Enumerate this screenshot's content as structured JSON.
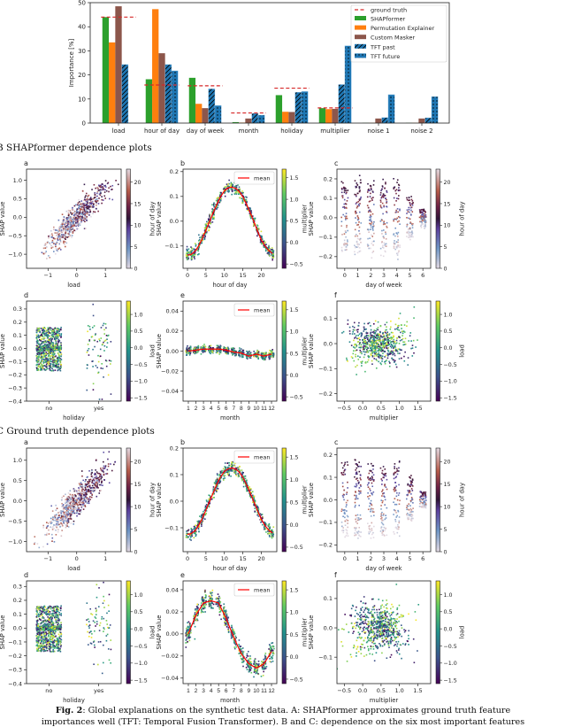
{
  "sections": {
    "B": "B SHAPformer dependence plots",
    "C": "C Ground truth dependence plots"
  },
  "caption": {
    "label": "Fig. 2",
    "line1": ": Global explanations on the synthetic test data. A: SHAPformer approximates ground truth feature",
    "line2": "importances well (TFT: Temporal Fusion Transformer). B and C: dependence on the six most important features"
  },
  "chart_data": [
    {
      "id": "A",
      "type": "bar",
      "ylabel": "Importance [%]",
      "xlabel": "",
      "ylim": [
        0,
        50
      ],
      "yticks": [
        0,
        10,
        20,
        30,
        40,
        50
      ],
      "grid": false,
      "legend": "top-right",
      "categories": [
        "load",
        "hour of day",
        "day of week",
        "month",
        "holiday",
        "multiplier",
        "noise 1",
        "noise 2"
      ],
      "reference": {
        "name": "ground truth",
        "color": "#d62728",
        "style": "dashed",
        "values": [
          44,
          15.8,
          15.5,
          4.2,
          14.5,
          6.3,
          null,
          null
        ]
      },
      "series": [
        {
          "name": "SHAPformer",
          "color": "#2ca02c",
          "hatch": "none",
          "values": [
            44,
            18.2,
            18.8,
            0.4,
            11.6,
            6.2,
            0.1,
            0.1
          ]
        },
        {
          "name": "Permutation Explainer",
          "color": "#ff7f0e",
          "hatch": "none",
          "values": [
            33.5,
            47.3,
            8.0,
            0.2,
            4.7,
            5.8,
            0.1,
            0.1
          ]
        },
        {
          "name": "Custom Masker",
          "color": "#8c564b",
          "hatch": "none",
          "values": [
            48.5,
            29.0,
            6.2,
            1.9,
            4.6,
            5.9,
            1.9,
            1.9
          ]
        },
        {
          "name": "TFT past",
          "color": "#1f77b4",
          "hatch": "diagonal",
          "values": [
            24.3,
            24.3,
            14.2,
            4.0,
            12.8,
            16.0,
            2.3,
            2.2
          ]
        },
        {
          "name": "TFT future",
          "color": "#1f77b4",
          "hatch": "dots",
          "values": [
            0,
            21.7,
            7.3,
            3.3,
            13.1,
            32.1,
            11.8,
            11.0
          ]
        }
      ]
    },
    {
      "id": "B-a",
      "letter": "a",
      "type": "scatter",
      "pattern": "linear",
      "xlabel": "load",
      "ylabel": "SHAP value",
      "xlim": [
        -1.75,
        1.55
      ],
      "ylim": [
        -1.38,
        1.3
      ],
      "xticks": [
        -1,
        0,
        1
      ],
      "xticklabels": [
        "−1",
        "0",
        "1"
      ],
      "yticks": [
        -1,
        -0.5,
        0,
        0.5,
        1
      ],
      "yticklabels": [
        "−1.0",
        "−0.5",
        "0.0",
        "0.5",
        "1.0"
      ],
      "colorbar": {
        "label": "hour of day",
        "colormap": "twilight",
        "range": [
          0,
          23
        ],
        "ticks": [
          0,
          5,
          10,
          15,
          20
        ]
      }
    },
    {
      "id": "B-b",
      "letter": "b",
      "type": "scatter",
      "pattern": "curve",
      "xlabel": "hour of day",
      "ylabel": "SHAP value",
      "xlim": [
        -1.2,
        24.2
      ],
      "ylim": [
        -0.19,
        0.21
      ],
      "xticks": [
        0,
        5,
        10,
        15,
        20
      ],
      "xticklabels": [
        "0",
        "5",
        "10",
        "15",
        "20"
      ],
      "yticks": [
        -0.1,
        0,
        0.1,
        0.2
      ],
      "yticklabels": [
        "−0.1",
        "0.0",
        "0.1",
        "0.2"
      ],
      "colorbar": {
        "label": "multiplier",
        "colormap": "viridis",
        "range": [
          -0.6,
          1.7
        ],
        "ticks": [
          -0.5,
          0,
          0.5,
          1,
          1.5
        ],
        "ticklabels": [
          "−0.5",
          "0.0",
          "0.5",
          "1.0",
          "1.5"
        ]
      },
      "mean": {
        "name": "mean",
        "x": [
          0,
          1,
          2,
          3,
          4,
          5,
          6,
          7,
          8,
          9,
          10,
          11,
          12,
          13,
          14,
          15,
          16,
          17,
          18,
          19,
          20,
          21,
          22,
          23
        ],
        "y": [
          -0.137,
          -0.134,
          -0.122,
          -0.1,
          -0.07,
          -0.036,
          0,
          0.036,
          0.07,
          0.1,
          0.122,
          0.135,
          0.137,
          0.133,
          0.12,
          0.098,
          0.068,
          0.034,
          -0.002,
          -0.04,
          -0.075,
          -0.1,
          -0.118,
          -0.13
        ]
      }
    },
    {
      "id": "B-c",
      "letter": "c",
      "type": "scatter",
      "pattern": "dow",
      "amp": [
        0.2,
        0.2,
        0.2,
        0.2,
        0.2,
        0.12,
        0.05
      ],
      "xlabel": "day of week",
      "ylabel": "SHAP value",
      "xlim": [
        -0.6,
        6.6
      ],
      "ylim": [
        -0.26,
        0.25
      ],
      "xticks": [
        0,
        1,
        2,
        3,
        4,
        5,
        6
      ],
      "xticklabels": [
        "0",
        "1",
        "2",
        "3",
        "4",
        "5",
        "6"
      ],
      "yticks": [
        -0.2,
        -0.1,
        0,
        0.1,
        0.2
      ],
      "yticklabels": [
        "−0.2",
        "−0.1",
        "0.0",
        "0.1",
        "0.2"
      ],
      "colorbar": {
        "label": "hour of day",
        "colormap": "twilight",
        "range": [
          0,
          23
        ],
        "ticks": [
          0,
          5,
          10,
          15,
          20
        ]
      }
    },
    {
      "id": "B-d",
      "letter": "d",
      "type": "scatter",
      "pattern": "holiday",
      "xlabel": "holiday",
      "ylabel": "SHAP value",
      "xlim": [
        -0.45,
        1.45
      ],
      "ylim": [
        -0.4,
        0.36
      ],
      "xticks": [
        0,
        1
      ],
      "xticklabels": [
        "no",
        "yes"
      ],
      "yticks": [
        -0.4,
        -0.3,
        -0.2,
        -0.1,
        0,
        0.1,
        0.2,
        0.3
      ],
      "yticklabels": [
        "−0.4",
        "−0.3",
        "−0.2",
        "−0.1",
        "0.0",
        "0.1",
        "0.2",
        "0.3"
      ],
      "colorbar": {
        "label": "load",
        "colormap": "viridis",
        "range": [
          -1.6,
          1.4
        ],
        "ticks": [
          -1.5,
          -1,
          -0.5,
          0,
          0.5,
          1
        ],
        "ticklabels": [
          "−1.5",
          "−1.0",
          "−0.5",
          "0.0",
          "0.5",
          "1.0"
        ]
      }
    },
    {
      "id": "B-e",
      "letter": "e",
      "type": "scatter",
      "pattern": "curve",
      "noise": 0.0018,
      "xlabel": "month",
      "ylabel": "SHAP value",
      "xlim": [
        0.3,
        12.7
      ],
      "ylim": [
        -0.05,
        0.05
      ],
      "xticks": [
        1,
        2,
        3,
        4,
        5,
        6,
        7,
        8,
        9,
        10,
        11,
        12
      ],
      "xticklabels": [
        "1",
        "2",
        "3",
        "4",
        "5",
        "6",
        "7",
        "8",
        "9",
        "10",
        "11",
        "12"
      ],
      "yticks": [
        -0.04,
        -0.02,
        0,
        0.02,
        0.04
      ],
      "yticklabels": [
        "−0.04",
        "−0.02",
        "0.00",
        "0.02",
        "0.04"
      ],
      "colorbar": {
        "label": "multiplier",
        "colormap": "viridis",
        "range": [
          -0.6,
          1.7
        ],
        "ticks": [
          -0.5,
          0,
          0.5,
          1,
          1.5
        ],
        "ticklabels": [
          "−0.5",
          "0.0",
          "0.5",
          "1.0",
          "1.5"
        ]
      },
      "mean": {
        "name": "mean",
        "x": [
          1,
          2,
          3,
          4,
          5,
          6,
          7,
          8,
          9,
          10,
          11,
          12
        ],
        "y": [
          0,
          0.001,
          0.002,
          0.002,
          0.002,
          0.001,
          -0.001,
          -0.002,
          -0.005,
          -0.003,
          -0.005,
          -0.003
        ]
      }
    },
    {
      "id": "B-f",
      "letter": "f",
      "type": "scatter",
      "pattern": "cloud",
      "xlabel": "multiplier",
      "ylabel": "SHAP value",
      "xlim": [
        -0.7,
        1.85
      ],
      "ylim": [
        -0.23,
        0.17
      ],
      "xticks": [
        -0.5,
        0,
        0.5,
        1,
        1.5
      ],
      "xticklabels": [
        "−0.5",
        "0.0",
        "0.5",
        "1.0",
        "1.5"
      ],
      "yticks": [
        -0.2,
        -0.1,
        0,
        0.1
      ],
      "yticklabels": [
        "−0.2",
        "−0.1",
        "0.0",
        "0.1"
      ],
      "colorbar": {
        "label": "load",
        "colormap": "viridis",
        "range": [
          -1.6,
          1.4
        ],
        "ticks": [
          -1.5,
          -1,
          -0.5,
          0,
          0.5,
          1
        ],
        "ticklabels": [
          "−1.5",
          "−1.0",
          "−0.5",
          "0.0",
          "0.5",
          "1.0"
        ]
      }
    },
    {
      "id": "C-a",
      "letter": "a",
      "type": "scatter",
      "pattern": "linear",
      "xlabel": "load",
      "ylabel": "SHAP value",
      "xlim": [
        -1.75,
        1.55
      ],
      "ylim": [
        -1.25,
        1.3
      ],
      "xticks": [
        -1,
        0,
        1
      ],
      "xticklabels": [
        "−1",
        "0",
        "1"
      ],
      "yticks": [
        -1,
        -0.5,
        0,
        0.5,
        1
      ],
      "yticklabels": [
        "−1.0",
        "−0.5",
        "0.0",
        "0.5",
        "1.0"
      ],
      "colorbar": {
        "label": "hour of day",
        "colormap": "twilight",
        "range": [
          0,
          23
        ],
        "ticks": [
          0,
          5,
          10,
          15,
          20
        ]
      }
    },
    {
      "id": "C-b",
      "letter": "b",
      "type": "scatter",
      "pattern": "curve",
      "xlabel": "hour of day",
      "ylabel": "SHAP value",
      "xlim": [
        -1.2,
        24.2
      ],
      "ylim": [
        -0.19,
        0.2
      ],
      "xticks": [
        0,
        5,
        10,
        15,
        20
      ],
      "xticklabels": [
        "0",
        "5",
        "10",
        "15",
        "20"
      ],
      "yticks": [
        -0.1,
        0,
        0.1,
        0.2
      ],
      "yticklabels": [
        "−0.1",
        "0.0",
        "0.1",
        "0.2"
      ],
      "colorbar": {
        "label": "multiplier",
        "colormap": "viridis",
        "range": [
          -0.6,
          1.7
        ],
        "ticks": [
          -0.5,
          0,
          0.5,
          1,
          1.5
        ],
        "ticklabels": [
          "−0.5",
          "0.0",
          "0.5",
          "1.0",
          "1.5"
        ]
      },
      "mean": {
        "name": "mean",
        "x": [
          0,
          1,
          2,
          3,
          4,
          5,
          6,
          7,
          8,
          9,
          10,
          11,
          12,
          13,
          14,
          15,
          16,
          17,
          18,
          19,
          20,
          21,
          22,
          23
        ],
        "y": [
          -0.125,
          -0.122,
          -0.112,
          -0.092,
          -0.065,
          -0.033,
          0,
          0.033,
          0.065,
          0.092,
          0.112,
          0.122,
          0.125,
          0.122,
          0.11,
          0.09,
          0.062,
          0.031,
          -0.002,
          -0.036,
          -0.068,
          -0.092,
          -0.108,
          -0.12
        ]
      }
    },
    {
      "id": "C-c",
      "letter": "c",
      "type": "scatter",
      "pattern": "dow",
      "amp": [
        0.18,
        0.18,
        0.18,
        0.18,
        0.18,
        0.1,
        0.04
      ],
      "xlabel": "day of week",
      "ylabel": "SHAP value",
      "xlim": [
        -0.6,
        6.6
      ],
      "ylim": [
        -0.23,
        0.23
      ],
      "xticks": [
        0,
        1,
        2,
        3,
        4,
        5,
        6
      ],
      "xticklabels": [
        "0",
        "1",
        "2",
        "3",
        "4",
        "5",
        "6"
      ],
      "yticks": [
        -0.2,
        -0.1,
        0,
        0.1,
        0.2
      ],
      "yticklabels": [
        "−0.2",
        "−0.1",
        "0.0",
        "0.1",
        "0.2"
      ],
      "colorbar": {
        "label": "hour of day",
        "colormap": "twilight",
        "range": [
          0,
          23
        ],
        "ticks": [
          0,
          5,
          10,
          15,
          20
        ]
      }
    },
    {
      "id": "C-d",
      "letter": "d",
      "type": "scatter",
      "pattern": "holiday",
      "xlabel": "holiday",
      "ylabel": "SHAP value",
      "xlim": [
        -0.45,
        1.45
      ],
      "ylim": [
        -0.4,
        0.34
      ],
      "xticks": [
        0,
        1
      ],
      "xticklabels": [
        "no",
        "yes"
      ],
      "yticks": [
        -0.4,
        -0.3,
        -0.2,
        -0.1,
        0,
        0.1,
        0.2,
        0.3
      ],
      "yticklabels": [
        "−0.4",
        "−0.3",
        "−0.2",
        "−0.1",
        "0.0",
        "0.1",
        "0.2",
        "0.3"
      ],
      "colorbar": {
        "label": "load",
        "colormap": "viridis",
        "range": [
          -1.6,
          1.4
        ],
        "ticks": [
          -1.5,
          -1,
          -0.5,
          0,
          0.5,
          1
        ],
        "ticklabels": [
          "−1.5",
          "−1.0",
          "−0.5",
          "0.0",
          "0.5",
          "1.0"
        ]
      }
    },
    {
      "id": "C-e",
      "letter": "e",
      "type": "scatter",
      "pattern": "curve",
      "noise": 0.004,
      "xlabel": "month",
      "ylabel": "SHAP value",
      "xlim": [
        0.3,
        12.7
      ],
      "ylim": [
        -0.045,
        0.048
      ],
      "xticks": [
        1,
        2,
        3,
        4,
        5,
        6,
        7,
        8,
        9,
        10,
        11,
        12
      ],
      "xticklabels": [
        "1",
        "2",
        "3",
        "4",
        "5",
        "6",
        "7",
        "8",
        "9",
        "10",
        "11",
        "12"
      ],
      "yticks": [
        -0.04,
        -0.02,
        0,
        0.02,
        0.04
      ],
      "yticklabels": [
        "−0.04",
        "−0.02",
        "0.00",
        "0.02",
        "0.04"
      ],
      "colorbar": {
        "label": "multiplier",
        "colormap": "viridis",
        "range": [
          -0.6,
          1.7
        ],
        "ticks": [
          -0.5,
          0,
          0.5,
          1,
          1.5
        ],
        "ticklabels": [
          "−0.5",
          "0.0",
          "0.5",
          "1.0",
          "1.5"
        ]
      },
      "mean": {
        "name": "mean",
        "x": [
          1,
          2,
          3,
          4,
          5,
          6,
          7,
          8,
          9,
          10,
          11,
          12
        ],
        "y": [
          0,
          0.017,
          0.028,
          0.03,
          0.028,
          0.014,
          -0.003,
          -0.018,
          -0.027,
          -0.031,
          -0.027,
          -0.016
        ]
      }
    },
    {
      "id": "C-f",
      "letter": "f",
      "type": "scatter",
      "pattern": "cloud",
      "xlabel": "multiplier",
      "ylabel": "SHAP value",
      "xlim": [
        -0.7,
        1.85
      ],
      "ylim": [
        -0.19,
        0.16
      ],
      "xticks": [
        -0.5,
        0,
        0.5,
        1,
        1.5
      ],
      "xticklabels": [
        "−0.5",
        "0.0",
        "0.5",
        "1.0",
        "1.5"
      ],
      "yticks": [
        -0.1,
        0,
        0.1
      ],
      "yticklabels": [
        "−0.1",
        "0.0",
        "0.1"
      ],
      "colorbar": {
        "label": "load",
        "colormap": "viridis",
        "range": [
          -1.6,
          1.4
        ],
        "ticks": [
          -1.5,
          -1,
          -0.5,
          0,
          0.5,
          1
        ],
        "ticklabels": [
          "−1.5",
          "−1.0",
          "−0.5",
          "0.0",
          "0.5",
          "1.0"
        ]
      }
    }
  ]
}
